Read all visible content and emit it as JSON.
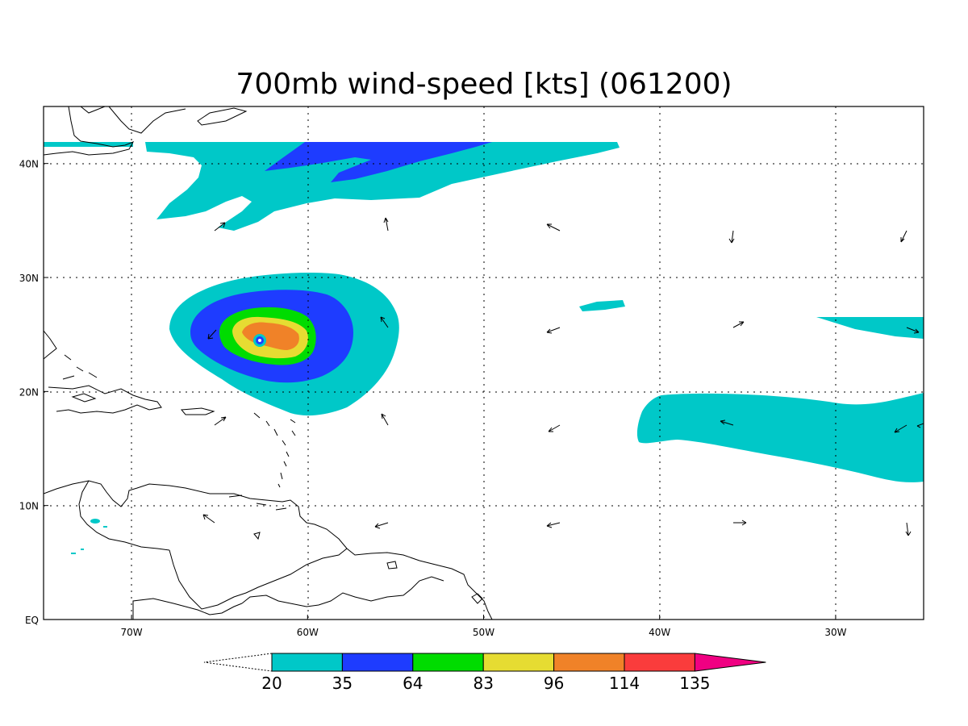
{
  "map": {
    "title": "700mb wind-speed [kts] (061200)",
    "domain_extent": {
      "lon": [
        -75,
        -25
      ],
      "lat": [
        0,
        45
      ]
    },
    "lon_ticks": [
      {
        "value": -70,
        "label": "70W"
      },
      {
        "value": -60,
        "label": "60W"
      },
      {
        "value": -50,
        "label": "50W"
      },
      {
        "value": -40,
        "label": "40W"
      },
      {
        "value": -30,
        "label": "30W"
      }
    ],
    "lat_ticks": [
      {
        "value": 0,
        "label": "EQ"
      },
      {
        "value": 10,
        "label": "10N"
      },
      {
        "value": 20,
        "label": "20N"
      },
      {
        "value": 30,
        "label": "30N"
      },
      {
        "value": 40,
        "label": "40N"
      }
    ],
    "gridlines": "dotted",
    "colorbar": {
      "levels": [
        "20",
        "35",
        "64",
        "83",
        "96",
        "114",
        "135"
      ],
      "colors": [
        "#00c8c8",
        "#1e3cff",
        "#00dc00",
        "#e6dc32",
        "#f08228",
        "#fa3c3c",
        "#f00082"
      ],
      "under": "none",
      "over_color": "#f00082"
    },
    "features": {
      "hurricane": "tropical cyclone centred near 24.5N 62.5W",
      "jet_band": "band of stronger winds near 35-42N",
      "trade_band": "easterly band near 15-20N, 40W-25W"
    }
  }
}
